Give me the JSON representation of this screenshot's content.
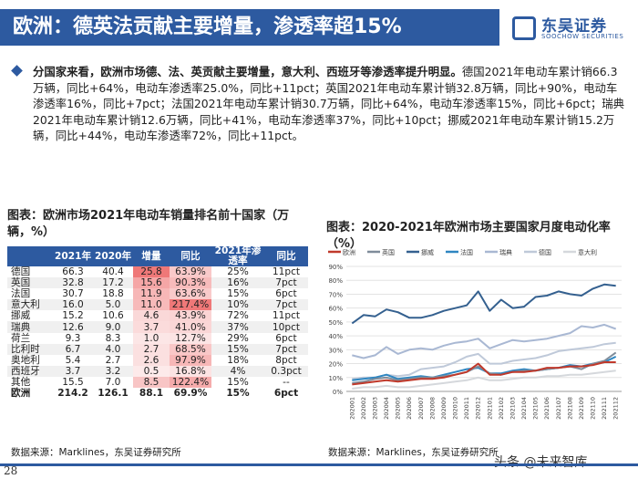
{
  "header": {
    "title": "欧洲：德英法贡献主要增量，渗透率超15%",
    "logo_cn": "东吴证券",
    "logo_en": "SOOCHOW SECURITIES"
  },
  "bullet": {
    "bold": "分国家来看，欧洲市场德、法、英贡献主要增量，意大利、西班牙等渗透率提升明显。",
    "text": "德国2021年电动车累计销66.3万辆，同比+64%，电动车渗透率25.0%，同比+11pct；英国2021年电动车累计销32.8万辆，同比+90%，电动车渗透率16%，同比+7pct；法国2021年电动车累计销30.7万辆，同比+64%，电动车渗透率15%，同比+6pct；瑞典2021年电动车累计销12.6万辆，同比+41%，电动车渗透率37%，同比+10pct；挪威2021年电动车累计销15.2万辆，同比+44%，电动车渗透率72%，同比+11pct。"
  },
  "table": {
    "title": "图表：欧洲市场2021年电动车销量排名前十国家（万辆，%）",
    "headers": [
      "",
      "2021年",
      "2020年",
      "增量",
      "同比",
      "2021年渗透率",
      "同比"
    ],
    "rows": [
      [
        "德国",
        "66.3",
        "40.4",
        "25.8",
        "63.9%",
        "25%",
        "11pct"
      ],
      [
        "英国",
        "32.8",
        "17.2",
        "15.6",
        "90.3%",
        "16%",
        "7pct"
      ],
      [
        "法国",
        "30.7",
        "18.8",
        "11.9",
        "63.6%",
        "15%",
        "6pct"
      ],
      [
        "意大利",
        "16.0",
        "5.0",
        "11.0",
        "217.4%",
        "10%",
        "7pct"
      ],
      [
        "挪威",
        "15.2",
        "10.6",
        "4.6",
        "43.9%",
        "72%",
        "11pct"
      ],
      [
        "瑞典",
        "12.6",
        "9.0",
        "3.7",
        "41.0%",
        "37%",
        "10pct"
      ],
      [
        "荷兰",
        "9.3",
        "8.3",
        "1.0",
        "12.7%",
        "29%",
        "6pct"
      ],
      [
        "比利时",
        "6.7",
        "4.0",
        "2.7",
        "68.5%",
        "15%",
        "7pct"
      ],
      [
        "奥地利",
        "5.4",
        "2.7",
        "2.6",
        "97.9%",
        "18%",
        "8pct"
      ],
      [
        "西班牙",
        "3.7",
        "3.2",
        "0.5",
        "16.8%",
        "4%",
        "0.3pct"
      ],
      [
        "其他",
        "15.5",
        "7.0",
        "8.5",
        "122.4%",
        "15%",
        "--"
      ],
      [
        "欧洲",
        "214.2",
        "126.1",
        "88.1",
        "69.9%",
        "15%",
        "6pct"
      ]
    ],
    "increment_values": [
      25.8,
      15.6,
      11.9,
      11.0,
      4.6,
      3.7,
      1.0,
      2.7,
      2.6,
      0.5,
      8.5
    ],
    "yoy_values": [
      63.9,
      90.3,
      63.6,
      217.4,
      43.9,
      41.0,
      12.7,
      68.5,
      97.9,
      16.8,
      122.4
    ],
    "source": "数据来源：Marklines，东吴证券研究所"
  },
  "chart_data": {
    "type": "line",
    "title": "图表：2020-2021年欧洲市场主要国家月度电动化率（%）",
    "categories": [
      "202001",
      "202002",
      "202003",
      "202004",
      "202005",
      "202006",
      "202007",
      "202008",
      "202009",
      "202010",
      "202011",
      "202012",
      "202101",
      "202102",
      "202103",
      "202104",
      "202105",
      "202106",
      "202107",
      "202108",
      "202109",
      "202110",
      "202111",
      "202112"
    ],
    "ylim": [
      0,
      90
    ],
    "yticks": [
      "0%",
      "10%",
      "20%",
      "30%",
      "40%",
      "50%",
      "60%",
      "70%",
      "80%",
      "90%"
    ],
    "series": [
      {
        "name": "欧洲",
        "color": "#c0392b",
        "values": [
          5,
          6,
          7,
          8,
          7,
          8,
          9,
          9,
          10,
          12,
          14,
          20,
          12,
          12,
          14,
          14,
          15,
          17,
          17,
          18,
          18,
          19,
          21,
          21
        ]
      },
      {
        "name": "英国",
        "color": "#7f8c9a",
        "values": [
          6,
          7,
          9,
          10,
          8,
          9,
          10,
          10,
          11,
          12,
          14,
          18,
          13,
          12,
          14,
          15,
          15,
          16,
          17,
          18,
          16,
          20,
          22,
          28
        ]
      },
      {
        "name": "挪威",
        "color": "#34608f",
        "values": [
          49,
          55,
          54,
          59,
          57,
          53,
          53,
          55,
          58,
          60,
          62,
          72,
          58,
          66,
          60,
          61,
          68,
          69,
          72,
          70,
          69,
          74,
          77,
          76
        ]
      },
      {
        "name": "法国",
        "color": "#2e86c1",
        "values": [
          8,
          9,
          10,
          12,
          9,
          10,
          11,
          10,
          12,
          14,
          16,
          17,
          13,
          13,
          15,
          16,
          15,
          16,
          17,
          19,
          18,
          20,
          21,
          25
        ]
      },
      {
        "name": "瑞典",
        "color": "#a9b8d3",
        "values": [
          26,
          24,
          26,
          32,
          27,
          30,
          31,
          30,
          33,
          35,
          36,
          38,
          31,
          34,
          37,
          36,
          37,
          38,
          40,
          42,
          47,
          46,
          48,
          45
        ]
      },
      {
        "name": "德国",
        "color": "#bfc9d9",
        "values": [
          9,
          10,
          10,
          12,
          11,
          12,
          16,
          17,
          18,
          21,
          25,
          27,
          20,
          20,
          22,
          23,
          24,
          26,
          29,
          30,
          31,
          32,
          34,
          35
        ]
      },
      {
        "name": "意大利",
        "color": "#d5d8dc",
        "values": [
          2,
          3,
          3,
          4,
          3,
          3,
          4,
          5,
          6,
          7,
          8,
          10,
          8,
          8,
          9,
          10,
          10,
          11,
          11,
          12,
          12,
          13,
          14,
          15
        ]
      }
    ],
    "source": "数据来源：Marklines，东吴证券研究所"
  },
  "footer": {
    "page_number": "28",
    "watermark": "头条 @未来智库"
  }
}
